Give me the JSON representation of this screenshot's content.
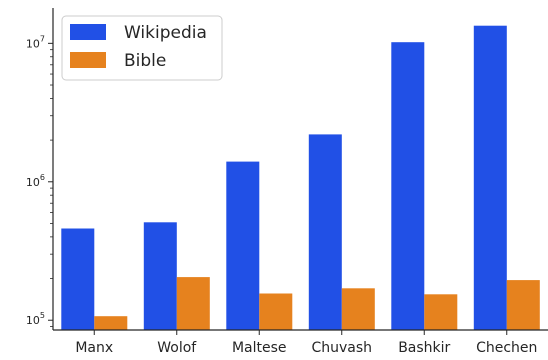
{
  "chart_data": {
    "type": "bar",
    "y_scale": "log",
    "ylim": [
      85000,
      18000000
    ],
    "categories": [
      "Manx",
      "Wolof",
      "Maltese",
      "Chuvash",
      "Bashkir",
      "Chechen"
    ],
    "series": [
      {
        "name": "Wikipedia",
        "color": "#2150e6",
        "values": [
          460000,
          510000,
          1400000,
          2200000,
          10200000,
          13400000
        ]
      },
      {
        "name": "Bible",
        "color": "#e6821e",
        "values": [
          107000,
          205000,
          156000,
          170000,
          154000,
          195000
        ]
      }
    ],
    "yticks": [
      {
        "value": 100000,
        "base": "10",
        "exp": "5"
      },
      {
        "value": 1000000,
        "base": "10",
        "exp": "6"
      },
      {
        "value": 10000000,
        "base": "10",
        "exp": "7"
      }
    ],
    "legend": {
      "position": "top-left"
    },
    "grid": false,
    "title": "",
    "xlabel": "",
    "ylabel": ""
  }
}
